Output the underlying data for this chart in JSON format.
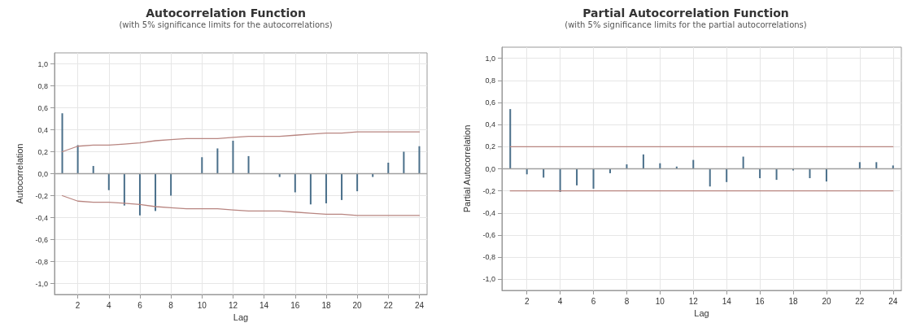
{
  "chart_data": [
    {
      "type": "bar",
      "title": "Autocorrelation Function",
      "subtitle": "(with 5% significance limits for the autocorrelations)",
      "xlabel": "Lag",
      "ylabel": "Autocorrelation",
      "x": [
        1,
        2,
        3,
        4,
        5,
        6,
        7,
        8,
        9,
        10,
        11,
        12,
        13,
        14,
        15,
        16,
        17,
        18,
        19,
        20,
        21,
        22,
        23,
        24
      ],
      "series": [
        {
          "color": "#4a6f8a",
          "values": [
            0.55,
            0.26,
            0.07,
            -0.15,
            -0.29,
            -0.38,
            -0.34,
            -0.2,
            0.0,
            0.15,
            0.23,
            0.3,
            0.16,
            0.0,
            -0.03,
            -0.17,
            -0.28,
            -0.27,
            -0.24,
            -0.16,
            -0.03,
            0.1,
            0.2,
            0.25
          ]
        },
        {
          "type": "line",
          "color": "#b88580",
          "values": [
            0.2,
            0.25,
            0.26,
            0.26,
            0.27,
            0.28,
            0.3,
            0.31,
            0.32,
            0.32,
            0.32,
            0.33,
            0.34,
            0.34,
            0.34,
            0.35,
            0.36,
            0.37,
            0.37,
            0.38,
            0.38,
            0.38,
            0.38,
            0.38
          ]
        },
        {
          "type": "line",
          "color": "#b88580",
          "values": [
            -0.2,
            -0.25,
            -0.26,
            -0.26,
            -0.27,
            -0.28,
            -0.3,
            -0.31,
            -0.32,
            -0.32,
            -0.32,
            -0.33,
            -0.34,
            -0.34,
            -0.34,
            -0.35,
            -0.36,
            -0.37,
            -0.37,
            -0.38,
            -0.38,
            -0.38,
            -0.38,
            -0.38
          ]
        }
      ],
      "ref_lines": [
        {
          "axis": "y",
          "value": 0,
          "color": "#a0a0a0"
        }
      ],
      "xlim": [
        0.5,
        24.5
      ],
      "xticks": [
        2,
        4,
        6,
        8,
        10,
        12,
        14,
        16,
        18,
        20,
        22,
        24
      ],
      "ylim": [
        -1.1,
        1.1
      ],
      "yticks": [
        {
          "value": -1,
          "label": "-1,0"
        },
        {
          "value": -0.8,
          "label": "-0,8"
        },
        {
          "value": -0.6,
          "label": "-0,6"
        },
        {
          "value": -0.4,
          "label": "-0,4"
        },
        {
          "value": -0.2,
          "label": "-0,2"
        },
        {
          "value": 0,
          "label": "0,0"
        },
        {
          "value": 0.2,
          "label": "0,2"
        },
        {
          "value": 0.4,
          "label": "0,4"
        },
        {
          "value": 0.6,
          "label": "0,6"
        },
        {
          "value": 0.8,
          "label": "0,8"
        },
        {
          "value": 1,
          "label": "1,0"
        }
      ],
      "grid": true,
      "marker": "none"
    },
    {
      "type": "bar",
      "title": "Partial Autocorrelation Function",
      "subtitle": "(with 5% significance limits for the partial autocorrelations)",
      "xlabel": "Lag",
      "ylabel": "Partial Autocorrelation",
      "x": [
        1,
        2,
        3,
        4,
        5,
        6,
        7,
        8,
        9,
        10,
        11,
        12,
        13,
        14,
        15,
        16,
        17,
        18,
        19,
        20,
        21,
        22,
        23,
        24
      ],
      "series": [
        {
          "color": "#4a6f8a",
          "values": [
            0.54,
            -0.05,
            -0.08,
            -0.21,
            -0.15,
            -0.18,
            -0.04,
            0.04,
            0.13,
            0.05,
            0.02,
            0.08,
            -0.16,
            -0.12,
            0.11,
            -0.085,
            -0.1,
            -0.015,
            -0.085,
            -0.115,
            0.0,
            0.06,
            0.06,
            0.03
          ]
        },
        {
          "type": "line",
          "color": "#b88580",
          "values": [
            0.2,
            0.2,
            0.2,
            0.2,
            0.2,
            0.2,
            0.2,
            0.2,
            0.2,
            0.2,
            0.2,
            0.2,
            0.2,
            0.2,
            0.2,
            0.2,
            0.2,
            0.2,
            0.2,
            0.2,
            0.2,
            0.2,
            0.2,
            0.2
          ]
        },
        {
          "type": "line",
          "color": "#b88580",
          "values": [
            -0.2,
            -0.2,
            -0.2,
            -0.2,
            -0.2,
            -0.2,
            -0.2,
            -0.2,
            -0.2,
            -0.2,
            -0.2,
            -0.2,
            -0.2,
            -0.2,
            -0.2,
            -0.2,
            -0.2,
            -0.2,
            -0.2,
            -0.2,
            -0.2,
            -0.2,
            -0.2,
            -0.2
          ]
        }
      ],
      "ref_lines": [
        {
          "axis": "y",
          "value": 0,
          "color": "#a0a0a0"
        }
      ],
      "xlim": [
        0.5,
        24.5
      ],
      "xticks": [
        2,
        4,
        6,
        8,
        10,
        12,
        14,
        16,
        18,
        20,
        22,
        24
      ],
      "ylim": [
        -1.1,
        1.1
      ],
      "yticks": [
        {
          "value": -1,
          "label": "-1,0"
        },
        {
          "value": -0.8,
          "label": "-0,8"
        },
        {
          "value": -0.6,
          "label": "-0,6"
        },
        {
          "value": -0.4,
          "label": "-0,4"
        },
        {
          "value": -0.2,
          "label": "-0,2"
        },
        {
          "value": 0,
          "label": "0,0"
        },
        {
          "value": 0.2,
          "label": "0,2"
        },
        {
          "value": 0.4,
          "label": "0,4"
        },
        {
          "value": 0.6,
          "label": "0,6"
        },
        {
          "value": 0.8,
          "label": "0,8"
        },
        {
          "value": 1,
          "label": "1,0"
        }
      ],
      "grid": true,
      "marker": "none"
    }
  ]
}
